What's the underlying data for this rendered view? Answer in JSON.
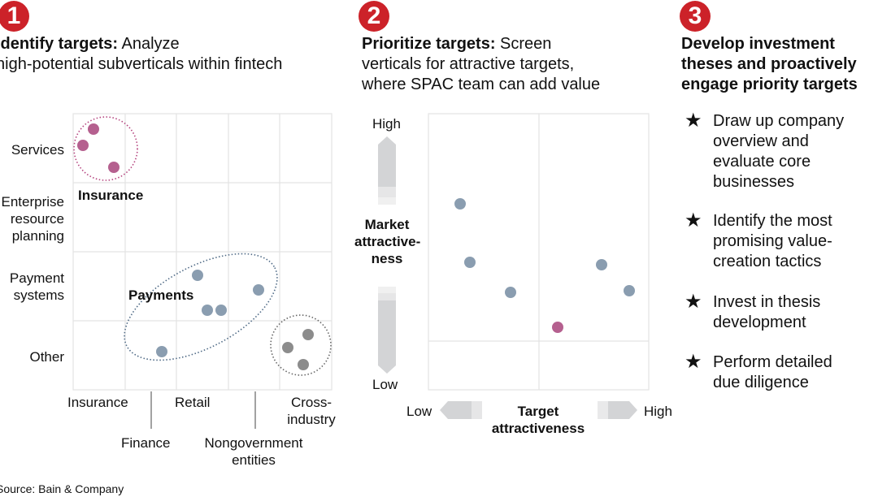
{
  "steps": [
    {
      "number": "1",
      "title_bold": "Identify targets:",
      "title_rest": "Analyze",
      "subtitle": "high-potential subverticals within fintech"
    },
    {
      "number": "2",
      "title_bold": "Prioritize targets:",
      "title_rest": "Screen",
      "line2": "verticals for attractive targets,",
      "line3": "where SPAC team can add value"
    },
    {
      "number": "3",
      "line1": "Develop investment",
      "line2": "theses and proactively",
      "line3": "engage priority targets"
    }
  ],
  "panel1": {
    "row_labels": [
      [
        "Services"
      ],
      [
        "Enterprise",
        "resource",
        "planning"
      ],
      [
        "Payment",
        "systems"
      ],
      [
        "Other"
      ]
    ],
    "col_labels_top": [
      "Insurance",
      "Retail",
      [
        "Cross-",
        "industry"
      ]
    ],
    "col_labels_bottom": [
      "Finance",
      [
        "Nongovernment",
        "entities"
      ]
    ],
    "clusters": [
      {
        "label": "Insurance",
        "color": "#b5608f"
      },
      {
        "label": "Payments",
        "color": "#8a9db0"
      },
      {
        "label": "",
        "color": "#8c8c8c"
      }
    ]
  },
  "panel2": {
    "y_axis": {
      "high": "High",
      "low": "Low",
      "label": [
        "Market",
        "attractive-",
        "ness"
      ]
    },
    "x_axis": {
      "low": "Low",
      "high": "High",
      "label": [
        "Target",
        "attractiveness"
      ]
    }
  },
  "panel3": {
    "icon": "star-icon",
    "bullets": [
      [
        "Draw up company",
        "overview and",
        "evaluate core",
        "businesses"
      ],
      [
        "Identify the most",
        "promising value-",
        "creation tactics"
      ],
      [
        "Invest in thesis",
        "development"
      ],
      [
        "Perform detailed",
        "due diligence"
      ]
    ]
  },
  "source": "Source: Bain & Company",
  "colors": {
    "accent_red": "#cc2229",
    "insurance": "#b5608f",
    "payments": "#8a9db0",
    "other": "#8c8c8c",
    "grid": "#e3e3e3"
  }
}
